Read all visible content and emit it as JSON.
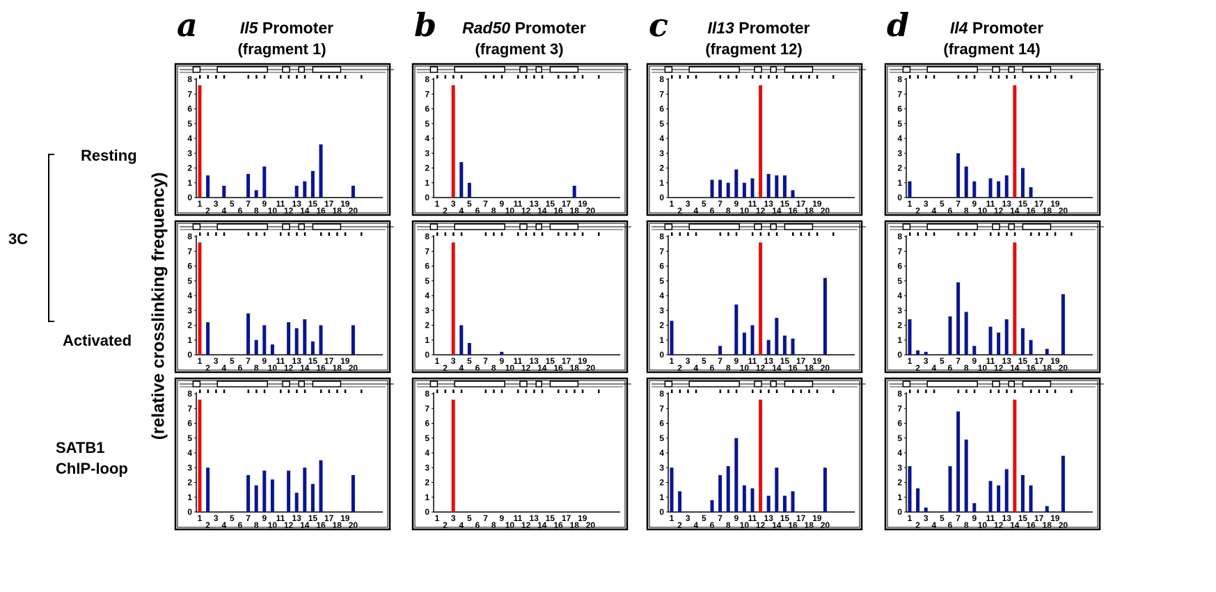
{
  "figure": {
    "row_labels": {
      "group": "3C",
      "resting": "Resting",
      "activated": "Activated",
      "chip1": "SATB1",
      "chip2": "ChIP-loop"
    },
    "ylabel": "(relative crosslinking frequency)",
    "colors": {
      "anchor": "#e3100f",
      "bar": "#0a1590",
      "frame": "#000000"
    }
  },
  "chart_data": [
    {
      "type": "bar",
      "panel_letter": "a",
      "gene": "Il5",
      "title": "Promoter",
      "subtitle": "(fragment 1)",
      "condition": "Resting",
      "anchor_fragment": 1,
      "fragments": [
        1,
        2,
        4,
        7,
        8,
        9,
        13,
        14,
        15,
        16,
        20
      ],
      "values": [
        7.6,
        1.5,
        0.8,
        1.6,
        0.5,
        2.1,
        0.8,
        1.1,
        1.8,
        3.6,
        0.8
      ],
      "ylim": [
        0,
        8
      ],
      "yticks": [
        "0",
        "1",
        "2",
        "3",
        "4",
        "5",
        "6",
        "7",
        "8"
      ],
      "xticks_top": [
        "1",
        "3",
        "5",
        "7",
        "9",
        "11",
        "13",
        "15",
        "17",
        "19"
      ],
      "xticks_bottom": [
        "2",
        "4",
        "6",
        "8",
        "10",
        "12",
        "14",
        "16",
        "18",
        "20"
      ]
    },
    {
      "type": "bar",
      "panel_letter": "b",
      "gene": "Rad50",
      "title": "Promoter",
      "subtitle": "(fragment 3)",
      "condition": "Resting",
      "anchor_fragment": 3,
      "fragments": [
        3,
        4,
        5,
        18
      ],
      "values": [
        7.6,
        2.4,
        1.0,
        0.8
      ],
      "ylim": [
        0,
        8
      ],
      "yticks": [
        "0",
        "1",
        "2",
        "3",
        "4",
        "5",
        "6",
        "7",
        "8"
      ],
      "xticks_top": [
        "1",
        "3",
        "5",
        "7",
        "9",
        "11",
        "13",
        "15",
        "17",
        "19"
      ],
      "xticks_bottom": [
        "2",
        "4",
        "6",
        "8",
        "10",
        "12",
        "14",
        "16",
        "18",
        "20"
      ]
    },
    {
      "type": "bar",
      "panel_letter": "c",
      "gene": "Il13",
      "title": "Promoter",
      "subtitle": "(fragment 12)",
      "condition": "Resting",
      "anchor_fragment": 12,
      "fragments": [
        6,
        7,
        8,
        9,
        10,
        11,
        12,
        13,
        14,
        15,
        16
      ],
      "values": [
        1.2,
        1.2,
        1.0,
        1.9,
        1.0,
        1.3,
        7.6,
        1.6,
        1.5,
        1.5,
        0.5
      ],
      "ylim": [
        0,
        8
      ],
      "yticks": [
        "0",
        "1",
        "2",
        "3",
        "4",
        "5",
        "6",
        "7",
        "8"
      ],
      "xticks_top": [
        "1",
        "3",
        "5",
        "7",
        "9",
        "11",
        "13",
        "15",
        "17",
        "19"
      ],
      "xticks_bottom": [
        "2",
        "4",
        "6",
        "8",
        "10",
        "12",
        "14",
        "16",
        "18",
        "20"
      ]
    },
    {
      "type": "bar",
      "panel_letter": "d",
      "gene": "Il4",
      "title": "Promoter",
      "subtitle": "(fragment 14)",
      "condition": "Resting",
      "anchor_fragment": 14,
      "fragments": [
        1,
        7,
        8,
        9,
        11,
        12,
        13,
        14,
        15,
        16
      ],
      "values": [
        1.1,
        3.0,
        2.1,
        1.1,
        1.3,
        1.1,
        1.5,
        7.6,
        2.0,
        0.7
      ],
      "ylim": [
        0,
        8
      ],
      "yticks": [
        "0",
        "1",
        "2",
        "3",
        "4",
        "5",
        "6",
        "7",
        "8"
      ],
      "xticks_top": [
        "1",
        "3",
        "5",
        "7",
        "9",
        "11",
        "13",
        "15",
        "17",
        "19"
      ],
      "xticks_bottom": [
        "2",
        "4",
        "6",
        "8",
        "10",
        "12",
        "14",
        "16",
        "18",
        "20"
      ]
    },
    {
      "type": "bar",
      "panel_letter": "a",
      "gene": "Il5",
      "condition": "Activated",
      "anchor_fragment": 1,
      "fragments": [
        1,
        2,
        7,
        8,
        9,
        10,
        12,
        13,
        14,
        15,
        16,
        20
      ],
      "values": [
        7.6,
        2.2,
        2.8,
        1.0,
        2.0,
        0.7,
        2.2,
        1.8,
        2.4,
        0.9,
        2.0,
        2.0
      ],
      "ylim": [
        0,
        8
      ],
      "yticks": [
        "0",
        "1",
        "2",
        "3",
        "4",
        "5",
        "6",
        "7",
        "8"
      ],
      "xticks_top": [
        "1",
        "3",
        "5",
        "7",
        "9",
        "11",
        "13",
        "15",
        "17",
        "19"
      ],
      "xticks_bottom": [
        "2",
        "4",
        "6",
        "8",
        "10",
        "12",
        "14",
        "16",
        "18",
        "20"
      ]
    },
    {
      "type": "bar",
      "panel_letter": "b",
      "gene": "Rad50",
      "condition": "Activated",
      "anchor_fragment": 3,
      "fragments": [
        3,
        4,
        5,
        9
      ],
      "values": [
        7.6,
        2.0,
        0.8,
        0.2
      ],
      "ylim": [
        0,
        8
      ],
      "yticks": [
        "0",
        "1",
        "2",
        "3",
        "4",
        "5",
        "6",
        "7",
        "8"
      ],
      "xticks_top": [
        "1",
        "3",
        "5",
        "7",
        "9",
        "11",
        "13",
        "15",
        "17",
        "19"
      ],
      "xticks_bottom": [
        "2",
        "4",
        "6",
        "8",
        "10",
        "12",
        "14",
        "16",
        "18",
        "20"
      ]
    },
    {
      "type": "bar",
      "panel_letter": "c",
      "gene": "Il13",
      "condition": "Activated",
      "anchor_fragment": 12,
      "fragments": [
        1,
        7,
        9,
        10,
        11,
        12,
        13,
        14,
        15,
        16,
        20
      ],
      "values": [
        2.3,
        0.6,
        3.4,
        1.5,
        2.0,
        7.6,
        1.0,
        2.5,
        1.3,
        1.1,
        5.2
      ],
      "ylim": [
        0,
        8
      ],
      "yticks": [
        "0",
        "1",
        "2",
        "3",
        "4",
        "5",
        "6",
        "7",
        "8"
      ],
      "xticks_top": [
        "1",
        "3",
        "5",
        "7",
        "9",
        "11",
        "13",
        "15",
        "17",
        "19"
      ],
      "xticks_bottom": [
        "2",
        "4",
        "6",
        "8",
        "10",
        "12",
        "14",
        "16",
        "18",
        "20"
      ]
    },
    {
      "type": "bar",
      "panel_letter": "d",
      "gene": "Il4",
      "condition": "Activated",
      "anchor_fragment": 14,
      "fragments": [
        1,
        2,
        3,
        6,
        7,
        8,
        9,
        11,
        12,
        13,
        14,
        15,
        16,
        18,
        20
      ],
      "values": [
        2.4,
        0.3,
        0.2,
        2.6,
        4.9,
        2.9,
        0.6,
        1.9,
        1.5,
        2.4,
        7.6,
        1.8,
        1.0,
        0.4,
        4.1
      ],
      "ylim": [
        0,
        8
      ],
      "yticks": [
        "0",
        "1",
        "2",
        "3",
        "4",
        "5",
        "6",
        "7",
        "8"
      ],
      "xticks_top": [
        "1",
        "3",
        "5",
        "7",
        "9",
        "11",
        "13",
        "15",
        "17",
        "19"
      ],
      "xticks_bottom": [
        "2",
        "4",
        "6",
        "8",
        "10",
        "12",
        "14",
        "16",
        "18",
        "20"
      ]
    },
    {
      "type": "bar",
      "panel_letter": "a",
      "gene": "Il5",
      "condition": "SATB1 ChIP-loop",
      "anchor_fragment": 1,
      "fragments": [
        1,
        2,
        7,
        8,
        9,
        10,
        12,
        13,
        14,
        15,
        16,
        20
      ],
      "values": [
        7.6,
        3.0,
        2.5,
        1.8,
        2.8,
        2.2,
        2.8,
        1.3,
        3.0,
        1.9,
        3.5,
        2.5
      ],
      "ylim": [
        0,
        8
      ],
      "yticks": [
        "0",
        "1",
        "2",
        "3",
        "4",
        "5",
        "6",
        "7",
        "8"
      ],
      "xticks_top": [
        "1",
        "3",
        "5",
        "7",
        "9",
        "11",
        "13",
        "15",
        "17",
        "19"
      ],
      "xticks_bottom": [
        "2",
        "4",
        "6",
        "8",
        "10",
        "12",
        "14",
        "16",
        "18",
        "20"
      ]
    },
    {
      "type": "bar",
      "panel_letter": "b",
      "gene": "Rad50",
      "condition": "SATB1 ChIP-loop",
      "anchor_fragment": 3,
      "fragments": [
        3
      ],
      "values": [
        7.6
      ],
      "ylim": [
        0,
        8
      ],
      "yticks": [
        "0",
        "1",
        "2",
        "3",
        "4",
        "5",
        "6",
        "7",
        "8"
      ],
      "xticks_top": [
        "1",
        "3",
        "5",
        "7",
        "9",
        "11",
        "13",
        "15",
        "17",
        "19"
      ],
      "xticks_bottom": [
        "2",
        "4",
        "6",
        "8",
        "10",
        "12",
        "14",
        "16",
        "18",
        "20"
      ]
    },
    {
      "type": "bar",
      "panel_letter": "c",
      "gene": "Il13",
      "condition": "SATB1 ChIP-loop",
      "anchor_fragment": 12,
      "fragments": [
        1,
        2,
        6,
        7,
        8,
        9,
        10,
        11,
        12,
        13,
        14,
        15,
        16,
        20
      ],
      "values": [
        3.0,
        1.4,
        0.8,
        2.5,
        3.1,
        5.0,
        1.8,
        1.6,
        7.6,
        1.1,
        3.0,
        1.1,
        1.4,
        3.0
      ],
      "ylim": [
        0,
        8
      ],
      "yticks": [
        "0",
        "1",
        "2",
        "3",
        "4",
        "5",
        "6",
        "7",
        "8"
      ],
      "xticks_top": [
        "1",
        "3",
        "5",
        "7",
        "9",
        "11",
        "13",
        "15",
        "17",
        "19"
      ],
      "xticks_bottom": [
        "2",
        "4",
        "6",
        "8",
        "10",
        "12",
        "14",
        "16",
        "18",
        "20"
      ]
    },
    {
      "type": "bar",
      "panel_letter": "d",
      "gene": "Il4",
      "condition": "SATB1 ChIP-loop",
      "anchor_fragment": 14,
      "fragments": [
        1,
        2,
        3,
        6,
        7,
        8,
        9,
        11,
        12,
        13,
        14,
        15,
        16,
        18,
        20
      ],
      "values": [
        3.1,
        1.6,
        0.3,
        3.1,
        6.8,
        4.9,
        0.6,
        2.1,
        1.8,
        2.9,
        7.6,
        2.5,
        1.8,
        0.4,
        3.8
      ],
      "ylim": [
        0,
        8
      ],
      "yticks": [
        "0",
        "1",
        "2",
        "3",
        "4",
        "5",
        "6",
        "7",
        "8"
      ],
      "xticks_top": [
        "1",
        "3",
        "5",
        "7",
        "9",
        "11",
        "13",
        "15",
        "17",
        "19"
      ],
      "xticks_bottom": [
        "2",
        "4",
        "6",
        "8",
        "10",
        "12",
        "14",
        "16",
        "18",
        "20"
      ]
    }
  ]
}
